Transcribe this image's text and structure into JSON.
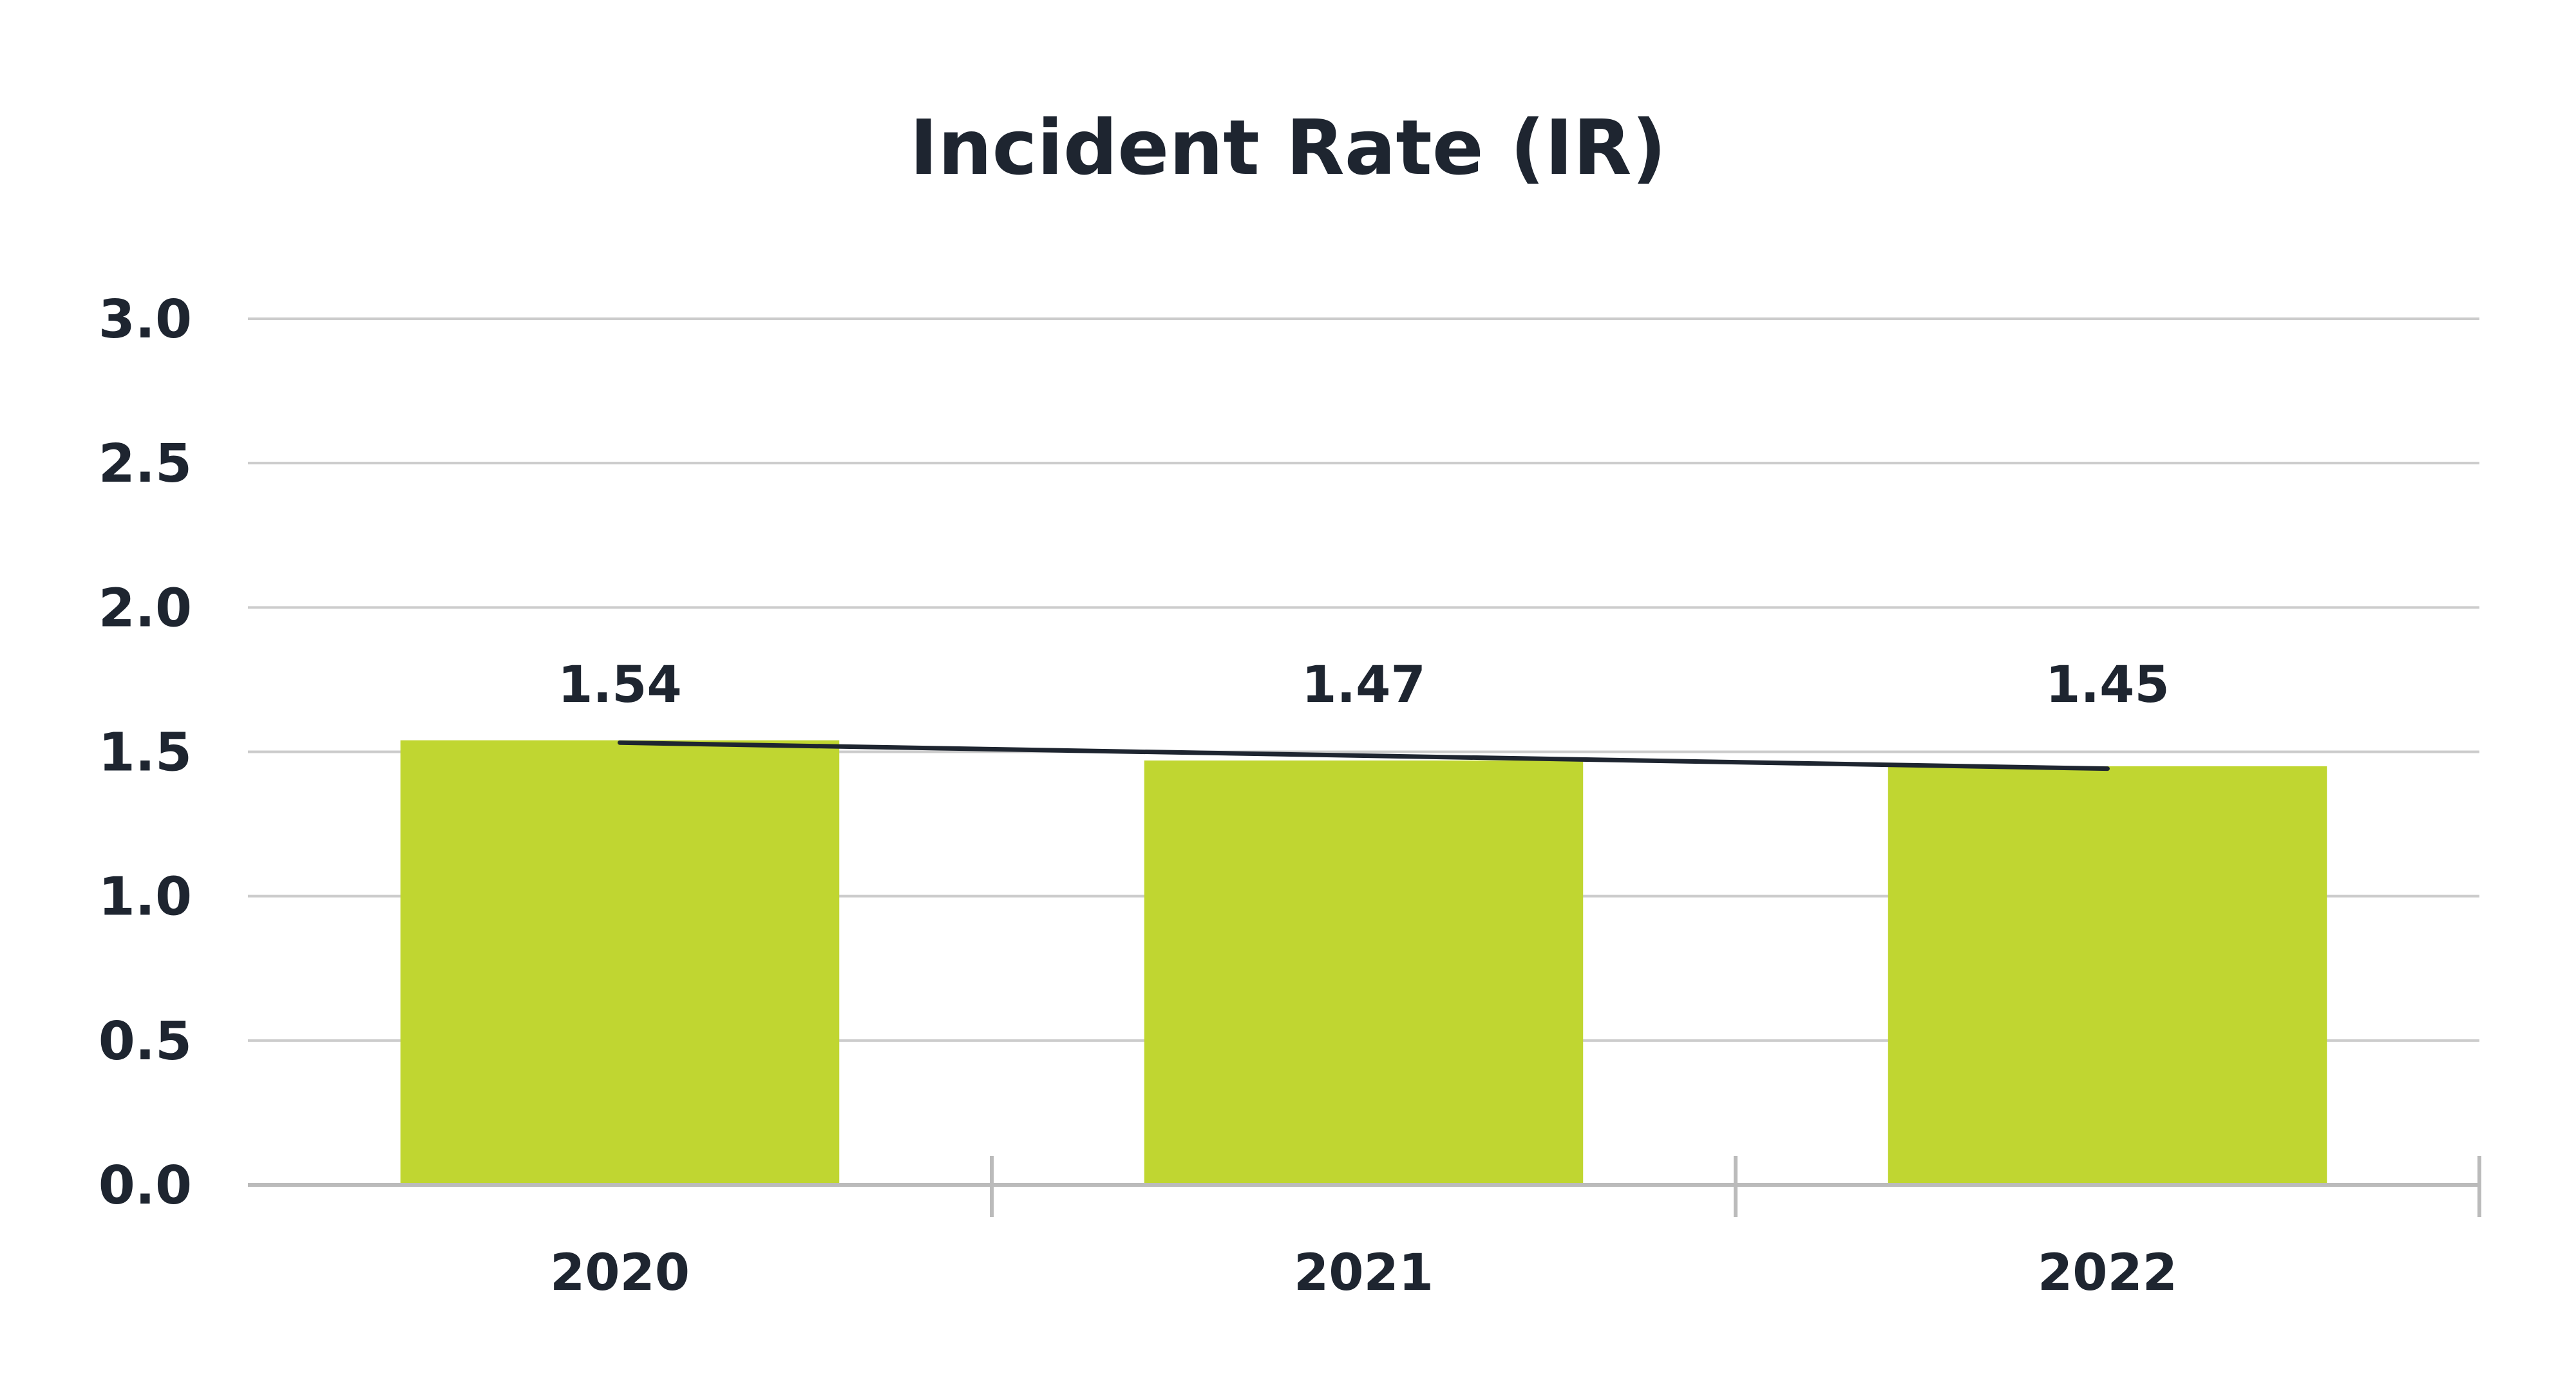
{
  "chart_data": {
    "type": "bar",
    "title": "Incident Rate (IR)",
    "categories": [
      "2020",
      "2021",
      "2022"
    ],
    "series": [
      {
        "values": [
          1.54,
          1.47,
          1.45
        ]
      }
    ],
    "data_labels": [
      "1.54",
      "1.47",
      "1.45"
    ],
    "trendline": "linear",
    "ylim": [
      0,
      3.0
    ],
    "yticks": [
      0.0,
      0.5,
      1.0,
      1.5,
      2.0,
      2.5,
      3.0
    ],
    "ytick_labels": [
      "0.0",
      "0.5",
      "1.0",
      "1.5",
      "2.0",
      "2.5",
      "3.0"
    ],
    "xlabel": "",
    "ylabel": "",
    "grid": true,
    "legend": "none",
    "colors": {
      "bar": "#c0d631",
      "trendline": "#1e2530",
      "grid": "#cccccc",
      "text": "#1e2530"
    }
  }
}
